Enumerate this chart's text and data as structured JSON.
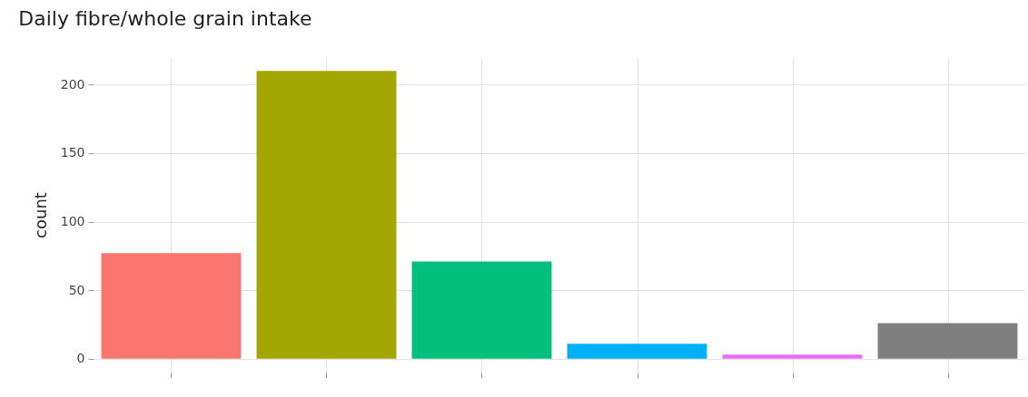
{
  "chart_data": {
    "type": "bar",
    "title": "Daily fibre/whole grain intake",
    "ylabel": "count",
    "categories": [
      null,
      null,
      null,
      null,
      null,
      null
    ],
    "values": [
      77,
      210,
      71,
      11,
      3,
      26
    ],
    "colors": [
      "#f8766d",
      "#a3a500",
      "#00bf7d",
      "#00b0f6",
      "#e76bf3",
      "#7f7f7f"
    ],
    "ylim": [
      -10,
      220
    ],
    "yticks": [
      0,
      50,
      100,
      150,
      200
    ],
    "grid": true,
    "tick_labels": "y"
  }
}
